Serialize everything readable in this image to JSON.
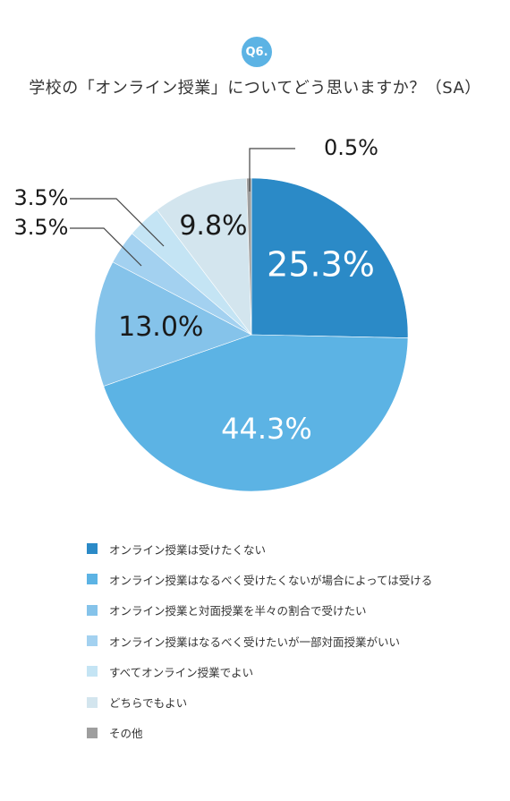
{
  "header": {
    "badge": "Q6.",
    "question": "学校の「オンライン授業」についてどう思いますか？（SA）"
  },
  "chart_data": {
    "type": "pie",
    "title": "学校の「オンライン授業」についてどう思いますか？（SA）",
    "categories": [
      "オンライン授業は受けたくない",
      "オンライン授業はなるべく受けたくないが場合によっては受ける",
      "オンライン授業と対面授業を半々の割合で受けたい",
      "オンライン授業はなるべく受けたいが一部対面授業がいい",
      "すべてオンライン授業でよい",
      "どちらでもよい",
      "その他"
    ],
    "values": [
      25.3,
      44.3,
      13.0,
      3.5,
      3.5,
      9.8,
      0.5
    ],
    "labels": [
      "25.3%",
      "44.3%",
      "13.0%",
      "3.5%",
      "3.5%",
      "9.8%",
      "0.5%"
    ],
    "colors": [
      "#2b8ac7",
      "#5cb3e4",
      "#85c3ea",
      "#a3d1f0",
      "#c4e4f4",
      "#d3e5ee",
      "#9e9e9e"
    ],
    "start_angle": "12 o'clock",
    "direction": "clockwise",
    "legend_position": "bottom"
  }
}
